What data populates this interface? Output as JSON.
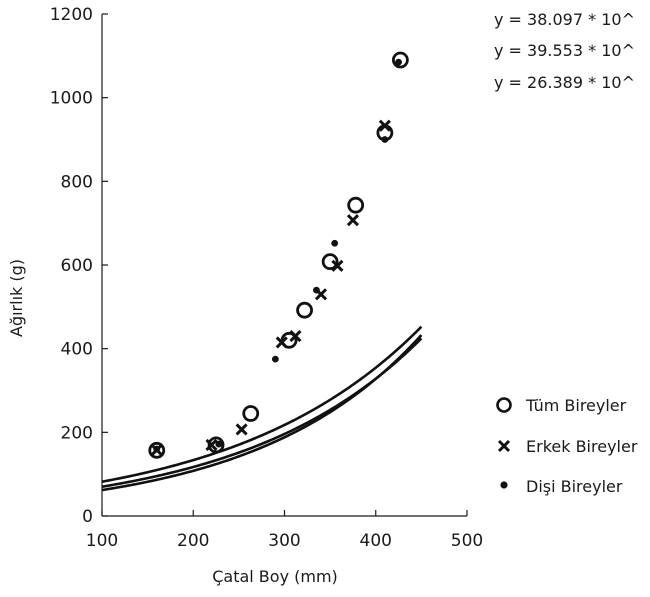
{
  "chart_data": {
    "type": "scatter",
    "xlabel": "Çatal Boy (mm)",
    "ylabel": "Ağırlık (g)",
    "xlim": [
      100,
      500
    ],
    "ylim": [
      0,
      1200
    ],
    "x_ticks": [
      "100",
      "200",
      "300",
      "400",
      "500"
    ],
    "y_ticks": [
      "0",
      "200",
      "400",
      "600",
      "800",
      "1000",
      "1200"
    ],
    "equations": [
      "y = 38.097 * 10^",
      "y = 39.553 * 10^",
      "y = 26.389 * 10^"
    ],
    "series": [
      {
        "name": "Tüm Bireyler",
        "marker": "open-circle",
        "points": [
          [
            160,
            157
          ],
          [
            225,
            170
          ],
          [
            263,
            245
          ],
          [
            305,
            420
          ],
          [
            322,
            492
          ],
          [
            350,
            608
          ],
          [
            378,
            743
          ],
          [
            410,
            916
          ],
          [
            427,
            1090
          ]
        ]
      },
      {
        "name": "Erkek Bireyler",
        "marker": "x",
        "points": [
          [
            160,
            158
          ],
          [
            220,
            170
          ],
          [
            253,
            207
          ],
          [
            297,
            415
          ],
          [
            312,
            430
          ],
          [
            340,
            530
          ],
          [
            358,
            598
          ],
          [
            375,
            707
          ],
          [
            410,
            933
          ]
        ]
      },
      {
        "name": "Dişi Bireyler",
        "marker": "dot",
        "points": [
          [
            160,
            160
          ],
          [
            228,
            172
          ],
          [
            290,
            375
          ],
          [
            335,
            540
          ],
          [
            355,
            652
          ],
          [
            410,
            900
          ],
          [
            425,
            1085
          ]
        ]
      }
    ],
    "fit_curves": [
      {
        "a": 82,
        "b": 0.00488,
        "x_range": [
          100,
          450
        ]
      },
      {
        "a": 62,
        "b": 0.00555,
        "x_range": [
          100,
          450
        ]
      },
      {
        "a": 70,
        "b": 0.00515,
        "x_range": [
          100,
          450
        ]
      }
    ],
    "legend_position": "right"
  }
}
